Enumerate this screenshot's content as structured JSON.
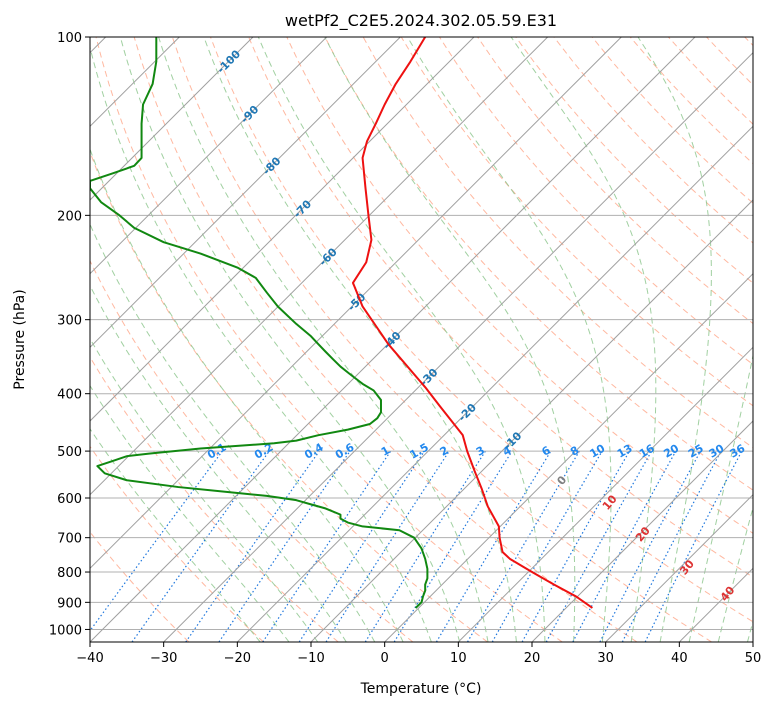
{
  "chart_data": {
    "type": "line",
    "title": "wetPf2_C2E5.2024.302.05.59.E31",
    "xlabel": "Temperature (°C)",
    "ylabel": "Pressure (hPa)",
    "xlim": [
      -40,
      50
    ],
    "ylim": [
      1050,
      100
    ],
    "y_scale": "log",
    "grid": true,
    "x_ticks": [
      -40,
      -30,
      -20,
      -10,
      0,
      10,
      20,
      30,
      40,
      50
    ],
    "y_ticks": [
      100,
      200,
      300,
      400,
      500,
      600,
      700,
      800,
      900,
      1000
    ],
    "isotherm_labels": [
      {
        "t": -100,
        "p": 110
      },
      {
        "t": -90,
        "p": 135
      },
      {
        "t": -80,
        "p": 165
      },
      {
        "t": -70,
        "p": 195
      },
      {
        "t": -60,
        "p": 235
      },
      {
        "t": -50,
        "p": 280
      },
      {
        "t": -40,
        "p": 325
      },
      {
        "t": -30,
        "p": 375
      },
      {
        "t": -20,
        "p": 430
      },
      {
        "t": -10,
        "p": 480
      }
    ],
    "mixing_ratio_labels": [
      "0.1",
      "0.2",
      "0.4",
      "0.6",
      "1",
      "1.5",
      "2",
      "3",
      "4",
      "6",
      "8",
      "10",
      "13",
      "16",
      "20",
      "25",
      "30",
      "36"
    ],
    "moist_adiabat_labels": [
      "0",
      "10",
      "20",
      "30",
      "40"
    ],
    "colors": {
      "temperature": "#ee1111",
      "dewpoint": "#118811",
      "isotherm": "#a0a0a0",
      "isotherm_label": "#1f77b4",
      "dry_adiabat": "#ffa080",
      "moist_adiabat": "#90c890",
      "mixing_ratio": "#1f77dd",
      "mixing_ratio_label": "#2288ee",
      "moist_label": "#dd3333",
      "grid": "#b0b0b0"
    },
    "series": [
      {
        "type": "temperature",
        "points": [
          [
            28.2,
            920
          ],
          [
            26,
            880
          ],
          [
            23,
            840
          ],
          [
            20,
            800
          ],
          [
            17,
            760
          ],
          [
            16,
            740
          ],
          [
            15.6,
            700
          ],
          [
            15.5,
            670
          ],
          [
            14,
            620
          ],
          [
            13.2,
            580
          ],
          [
            12.2,
            540
          ],
          [
            11.2,
            500
          ],
          [
            10.6,
            470
          ],
          [
            7.5,
            420
          ],
          [
            5.5,
            390
          ],
          [
            0.5,
            330
          ],
          [
            -3,
            285
          ],
          [
            -4.3,
            260
          ],
          [
            -2.5,
            240
          ],
          [
            -1.8,
            220
          ],
          [
            -2.2,
            200
          ],
          [
            -2.6,
            180
          ],
          [
            -3.0,
            160
          ],
          [
            -2.4,
            150
          ],
          [
            -1.2,
            140
          ],
          [
            0,
            130
          ],
          [
            1.5,
            120
          ],
          [
            3.5,
            110
          ],
          [
            5.5,
            100
          ]
        ]
      },
      {
        "type": "dewpoint",
        "points": [
          [
            4.2,
            920
          ],
          [
            5,
            900
          ],
          [
            5.2,
            880
          ],
          [
            5.5,
            860
          ],
          [
            5.5,
            840
          ],
          [
            5.8,
            820
          ],
          [
            5.8,
            790
          ],
          [
            5.5,
            760
          ],
          [
            5,
            730
          ],
          [
            4,
            700
          ],
          [
            2,
            680
          ],
          [
            -3,
            670
          ],
          [
            -5,
            660
          ],
          [
            -6,
            650
          ],
          [
            -6,
            640
          ],
          [
            -8,
            625
          ],
          [
            -10,
            615
          ],
          [
            -12,
            605
          ],
          [
            -16,
            595
          ],
          [
            -22,
            585
          ],
          [
            -28,
            575
          ],
          [
            -35,
            560
          ],
          [
            -38,
            545
          ],
          [
            -39,
            530
          ],
          [
            -37,
            520
          ],
          [
            -35,
            510
          ],
          [
            -32,
            505
          ],
          [
            -25,
            495
          ],
          [
            -20,
            490
          ],
          [
            -15,
            485
          ],
          [
            -12,
            480
          ],
          [
            -9,
            470
          ],
          [
            -5,
            460
          ],
          [
            -2,
            450
          ],
          [
            -1,
            440
          ],
          [
            -0.5,
            430
          ],
          [
            -0.5,
            410
          ],
          [
            -1.5,
            395
          ],
          [
            -3,
            385
          ],
          [
            -4.8,
            370
          ],
          [
            -6,
            360
          ],
          [
            -7,
            350
          ],
          [
            -8,
            340
          ],
          [
            -9,
            330
          ],
          [
            -10,
            320
          ],
          [
            -12,
            305
          ],
          [
            -14.5,
            285
          ],
          [
            -16,
            270
          ],
          [
            -17.5,
            255
          ],
          [
            -20,
            245
          ],
          [
            -25,
            232
          ],
          [
            -30,
            222
          ],
          [
            -34,
            210
          ],
          [
            -36,
            200
          ],
          [
            -38.5,
            190
          ],
          [
            -40,
            180
          ],
          [
            -40,
            175
          ],
          [
            -37,
            170
          ],
          [
            -34,
            165
          ],
          [
            -33,
            160
          ],
          [
            -33,
            150
          ],
          [
            -33,
            140
          ],
          [
            -32.8,
            130
          ],
          [
            -31.5,
            120
          ],
          [
            -31,
            110
          ],
          [
            -31,
            100
          ]
        ]
      }
    ]
  }
}
